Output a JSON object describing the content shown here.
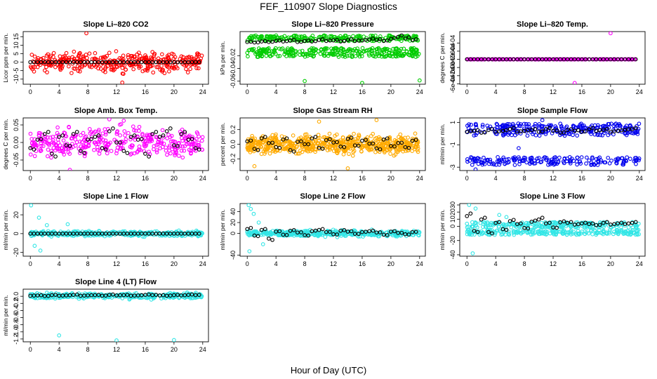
{
  "figure": {
    "title": "FEF_110907  Slope Diagnostics",
    "xlabel": "Hour of Day (UTC)",
    "x_ticks": [
      0,
      4,
      8,
      12,
      16,
      20,
      24
    ],
    "xlim": [
      -1,
      24.8
    ]
  },
  "chart_data": [
    {
      "type": "scatter",
      "title": "Slope Li–820 CO2",
      "ylabel": "Licor ppm per min.",
      "ylim": [
        -13,
        18
      ],
      "y_ticks": [
        -10,
        -5,
        0,
        5,
        10,
        15
      ],
      "color": "#ff0000",
      "series": [
        {
          "role": "minute-slopes",
          "color": "#ff0000",
          "spread_y": [
            -8,
            8
          ],
          "count": 380,
          "outliers": [
            [
              7.8,
              17
            ],
            [
              12.8,
              -12
            ],
            [
              4.2,
              -4.5
            ],
            [
              11,
              5.5
            ],
            [
              16,
              4
            ]
          ]
        },
        {
          "role": "hourly-mean",
          "color": "#000000",
          "values": [
            0,
            0,
            0,
            0,
            0,
            0,
            0,
            0,
            0,
            0,
            0,
            0,
            0,
            0,
            0,
            0,
            0,
            0,
            0,
            0,
            0,
            0,
            0,
            0
          ]
        }
      ]
    },
    {
      "type": "scatter",
      "title": "Slope Li–820 Pressure",
      "ylabel": "kPa per min.",
      "ylim": [
        -0.065,
        0.018
      ],
      "y_ticks": [
        -0.06,
        -0.04,
        -0.02
      ],
      "color": "#00cc00",
      "series": [
        {
          "role": "minute-slopes-upper",
          "color": "#00cc00",
          "band_y": [
            0.003,
            0.012
          ],
          "count": 240
        },
        {
          "role": "minute-slopes-lower",
          "color": "#00cc00",
          "band_y": [
            -0.022,
            -0.008
          ],
          "count": 300,
          "outliers": [
            [
              8,
              -0.06
            ],
            [
              16,
              -0.063
            ],
            [
              24,
              -0.059
            ]
          ]
        },
        {
          "role": "hourly-mean",
          "color": "#000000",
          "values": [
            0.002,
            0.001,
            0.003,
            0.002,
            0.004,
            0.003,
            0.005,
            0.002,
            0.004,
            0.003,
            0.006,
            0.004,
            0.005,
            0.003,
            0.006,
            0.004,
            0.005,
            0.007,
            0.006,
            0.004,
            0.008,
            0.012,
            0.009,
            0.006
          ]
        }
      ]
    },
    {
      "type": "scatter",
      "title": "Slope Li–820 Temp.",
      "ylabel": "degrees C per min.",
      "ylim": [
        -0.00061,
        0.00068
      ],
      "y_ticks": [
        -0.0006,
        -0.0004,
        -0.0002,
        0,
        0.0002,
        0.0004
      ],
      "y_tick_labels": [
        "-6e-04",
        "-4e-04",
        "-2e-04",
        "0e+00",
        "2e-04",
        "4e-04"
      ],
      "color": "#ff00ff",
      "series": [
        {
          "role": "minute-slopes",
          "color": "#ff00ff",
          "spread_y": [
            0,
            0
          ],
          "count": 200,
          "outliers": [
            [
              20,
              0.00064
            ],
            [
              15,
              -0.00058
            ],
            [
              0.1,
              0
            ]
          ]
        },
        {
          "role": "hourly-mean",
          "color": "#000000",
          "values": [
            0,
            0,
            0,
            0,
            0,
            0,
            0,
            0,
            0,
            0,
            0,
            0,
            0,
            0,
            0,
            0,
            0,
            0,
            0,
            0,
            0,
            0,
            0,
            0
          ]
        }
      ]
    },
    {
      "type": "scatter",
      "title": "Slope Amb. Box Temp.",
      "ylabel": "degrees C per min.",
      "ylim": [
        -0.08,
        0.07
      ],
      "y_ticks": [
        -0.05,
        0,
        0.05
      ],
      "y_tick_labels": [
        "-0.05",
        "0.00",
        "0.05"
      ],
      "color": "#ff00ff",
      "series": [
        {
          "role": "minute-slopes",
          "color": "#ff00ff",
          "spread_y": [
            -0.06,
            0.06
          ],
          "count": 360,
          "outliers": [
            [
              5.5,
              -0.078
            ],
            [
              11,
              0.066
            ],
            [
              13,
              0.062
            ]
          ]
        },
        {
          "role": "hourly-mean",
          "color": "#000000",
          "values": [
            -0.02,
            0.01,
            0.03,
            -0.04,
            0.02,
            -0.01,
            0.03,
            -0.03,
            0.01,
            0.02,
            -0.02,
            0.04,
            0.0,
            -0.03,
            0.02,
            0.01,
            -0.04,
            0.03,
            0.02,
            0.04,
            -0.01,
            0.03,
            0.01,
            -0.02
          ]
        }
      ]
    },
    {
      "type": "scatter",
      "title": "Slope Gas Stream RH",
      "ylabel": "percent per min.",
      "ylim": [
        -0.36,
        0.36
      ],
      "y_ticks": [
        -0.2,
        0,
        0.2
      ],
      "y_tick_labels": [
        "-0.2",
        "0.0",
        "0.2"
      ],
      "color": "#ffaa00",
      "series": [
        {
          "role": "minute-slopes",
          "color": "#ffaa00",
          "spread_y": [
            -0.18,
            0.18
          ],
          "count": 600,
          "outliers": [
            [
              1,
              -0.3
            ],
            [
              10,
              0.31
            ],
            [
              14,
              -0.33
            ],
            [
              18,
              0.33
            ]
          ]
        },
        {
          "role": "hourly-mean",
          "color": "#000000",
          "values": [
            0.05,
            -0.08,
            0.1,
            0.02,
            -0.05,
            0.08,
            -0.1,
            0.04,
            0.0,
            0.1,
            -0.06,
            0.07,
            0.03,
            -0.04,
            0.09,
            -0.02,
            0.06,
            0.01,
            -0.07,
            0.08,
            -0.03,
            0.02,
            -0.05,
            0.06
          ]
        }
      ]
    },
    {
      "type": "scatter",
      "title": "Slope Sample Flow",
      "ylabel": "ml/min per min.",
      "ylim": [
        -3.3,
        1.4
      ],
      "y_ticks": [
        -3,
        -1,
        1
      ],
      "color": "#0000ee",
      "series": [
        {
          "role": "minute-slopes-upper",
          "color": "#0000ee",
          "band_y": [
            -0.2,
            0.9
          ],
          "count": 260
        },
        {
          "role": "minute-slopes-lower",
          "color": "#0000ee",
          "band_y": [
            -2.8,
            -2.1
          ],
          "count": 190,
          "outliers": [
            [
              1.2,
              -3.2
            ],
            [
              10.5,
              1.2
            ],
            [
              7.2,
              -1.3
            ]
          ]
        },
        {
          "role": "hourly-mean",
          "color": "#000000",
          "values": [
            0.2,
            0.3,
            0.1,
            0.4,
            0.2,
            0.3,
            0.5,
            0.2,
            0.3,
            0.4,
            0.2,
            0.5,
            0.3,
            0.1,
            0.4,
            0.3,
            0.2,
            0.5,
            0.3,
            0.4,
            0.2,
            0.3,
            0.4,
            0.5
          ]
        }
      ]
    },
    {
      "type": "scatter",
      "title": "Slope Line 1 Flow",
      "ylabel": "ml/min per min.",
      "ylim": [
        -24,
        32
      ],
      "y_ticks": [
        -20,
        0,
        20
      ],
      "color": "#33e6e6",
      "series": [
        {
          "role": "minute-slopes",
          "color": "#33e6e6",
          "spread_y": [
            -4,
            4
          ],
          "count": 400,
          "outliers": [
            [
              0.1,
              30
            ],
            [
              1.2,
              17
            ],
            [
              0.6,
              -13
            ],
            [
              1.4,
              -18
            ],
            [
              5.2,
              10
            ],
            [
              2.3,
              9
            ]
          ]
        },
        {
          "role": "hourly-mean",
          "color": "#000000",
          "values": [
            0,
            0,
            0,
            0,
            0,
            0,
            0,
            0,
            0,
            0,
            0,
            0,
            0,
            0,
            0,
            0,
            0,
            0,
            0,
            0,
            0,
            0,
            0,
            0
          ]
        }
      ]
    },
    {
      "type": "scatter",
      "title": "Slope Line 2 Flow",
      "ylabel": "ml/min per min.",
      "ylim": [
        -42,
        55
      ],
      "y_ticks": [
        -40,
        0,
        20,
        40
      ],
      "color": "#33e6e6",
      "series": [
        {
          "role": "minute-slopes",
          "color": "#33e6e6",
          "spread_y": [
            -8,
            8
          ],
          "count": 420,
          "outliers": [
            [
              0.2,
              52
            ],
            [
              0.5,
              45
            ],
            [
              0.9,
              36
            ],
            [
              0.3,
              -33
            ],
            [
              1.6,
              20
            ],
            [
              2.2,
              -20
            ]
          ]
        },
        {
          "role": "hourly-mean",
          "color": "#000000",
          "values": [
            10,
            -5,
            8,
            -12,
            4,
            -3,
            6,
            2,
            -4,
            5,
            8,
            3,
            -2,
            6,
            4,
            -1,
            3,
            5,
            2,
            -3,
            4,
            1,
            -2,
            3
          ]
        }
      ]
    },
    {
      "type": "scatter",
      "title": "Slope Line 3 Flow",
      "ylabel": "ml/min per min.",
      "ylim": [
        -42,
        32
      ],
      "y_ticks": [
        -40,
        -20,
        0,
        10,
        20,
        30
      ],
      "color": "#33e6e6",
      "series": [
        {
          "role": "minute-slopes-upper",
          "color": "#33e6e6",
          "band_y": [
            -2,
            6
          ],
          "count": 230
        },
        {
          "role": "minute-slopes-lower",
          "color": "#33e6e6",
          "band_y": [
            -12,
            -5
          ],
          "count": 230,
          "outliers": [
            [
              0.3,
              30
            ],
            [
              1.2,
              25
            ],
            [
              0.8,
              -38
            ],
            [
              4.5,
              16
            ],
            [
              5.5,
              13
            ]
          ]
        },
        {
          "role": "hourly-mean",
          "color": "#000000",
          "values": [
            18,
            -8,
            12,
            -10,
            6,
            -5,
            9,
            4,
            -3,
            8,
            12,
            5,
            -2,
            7,
            6,
            3,
            5,
            4,
            2,
            6,
            3,
            5,
            4,
            6
          ]
        }
      ]
    },
    {
      "type": "scatter",
      "title": "Slope Line 4 (LT) Flow",
      "ylabel": "ml/min per min.",
      "ylim": [
        -1.28,
        0.2
      ],
      "y_ticks": [
        -1.2,
        -1.0,
        -0.8,
        -0.6,
        -0.4,
        -0.2,
        0.0
      ],
      "y_tick_labels": [
        "-1.2",
        "-1.0",
        "-0.8",
        "-0.6",
        "-0.4",
        "-0.2",
        "0.0"
      ],
      "color": "#33e6e6",
      "series": [
        {
          "role": "minute-slopes",
          "color": "#33e6e6",
          "spread_y": [
            -0.1,
            0.12
          ],
          "count": 380,
          "outliers": [
            [
              4,
              -1.1
            ],
            [
              12,
              -1.24
            ],
            [
              20,
              -1.23
            ]
          ]
        },
        {
          "role": "hourly-mean",
          "color": "#000000",
          "values": [
            0.02,
            0.03,
            0.01,
            0.04,
            0.02,
            0.03,
            0.05,
            0.02,
            0.03,
            0.04,
            0.02,
            0.05,
            0.03,
            0.04,
            0.02,
            0.03,
            0.05,
            0.04,
            0.03,
            0.02,
            0.04,
            0.03,
            0.05,
            0.04
          ]
        }
      ]
    }
  ]
}
